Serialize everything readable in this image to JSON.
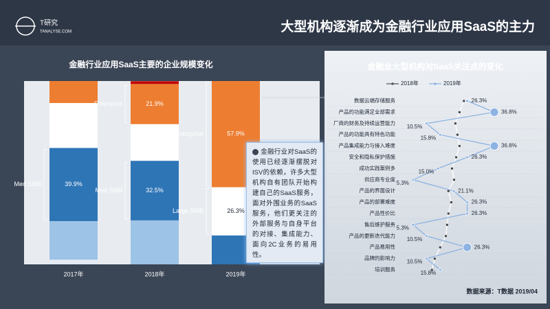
{
  "header": {
    "logo": "T研究",
    "site": "TANALYSE.COM",
    "title": "大型机构逐渐成为金融行业应用SaaS的主力"
  },
  "chart_data": [
    {
      "type": "bar",
      "stacked": true,
      "title": "金融行业应用SaaS主要的企业规模变化",
      "categories": [
        "2017年",
        "2018年",
        "2019年"
      ],
      "ylim": [
        0,
        100
      ],
      "series": [
        {
          "color": "#e4ebf5",
          "values": [
            2.6,
            0,
            0
          ],
          "value_labels": [
            null,
            null,
            null
          ]
        },
        {
          "color": "#9dc3e6",
          "values": [
            21,
            24,
            0
          ],
          "value_labels": [
            null,
            null,
            null
          ]
        },
        {
          "color": "#2e75b6",
          "values": [
            39.9,
            32.5,
            15.8
          ],
          "value_labels": [
            "39.9%",
            "32.5%",
            null
          ]
        },
        {
          "color": "#ffffff",
          "values": [
            24.5,
            20,
            26.3
          ],
          "value_labels": [
            null,
            null,
            "26.3%"
          ]
        },
        {
          "color": "#ed7d31",
          "values": [
            12,
            21.9,
            57.9
          ],
          "value_labels": [
            null,
            "21.9%",
            "57.9%"
          ]
        },
        {
          "color": "#c00000",
          "values": [
            0,
            1.5,
            0
          ],
          "value_labels": [
            null,
            null,
            null
          ]
        }
      ],
      "annotations": [
        "Med SMB",
        "Enterprise",
        "Med SMB",
        "Enterprise",
        "Large SMB"
      ]
    },
    {
      "type": "line",
      "orientation": "vertical",
      "title": "金融业大型机构对SaaS关注点的变化",
      "categories": [
        "数据云端存储服务",
        "产品的功能满足全部需求",
        "厂商的财务及持续运营能力",
        "产品的功能具有特色功能",
        "产品集成能力与接入难度",
        "安全和隐私保护措施",
        "成功实践案例多",
        "供应商专业度",
        "产品的界面设计",
        "产品的部署难度",
        "产品性价比",
        "售后维护服务",
        "产品的更新迭代能力",
        "产品易用性",
        "品牌的影响力",
        "培训服务"
      ],
      "xlim": [
        0,
        40
      ],
      "series": [
        {
          "name": "2018年",
          "color": "#ffffff",
          "values": [
            25,
            23.3,
            21.7,
            22.5,
            23.3,
            22,
            20.4,
            21.2,
            19,
            20.1,
            19,
            18.5,
            18,
            15.8,
            13.7,
            12.6
          ]
        },
        {
          "name": "2019年",
          "color": "#8db3e2",
          "values": [
            26.3,
            36.8,
            10.5,
            15.8,
            36.8,
            26.3,
            15.0,
            5.3,
            21.1,
            26.3,
            26.3,
            5.3,
            10.5,
            26.3,
            10.5,
            15.8
          ],
          "value_labels": [
            "26.3%",
            "36.8%",
            "10.5%",
            "15.8%",
            "36.8%",
            "26.3%",
            "15.0%",
            "5.3%",
            "21.1%",
            "26.3%",
            "26.3%",
            "5.3%",
            "10.5%",
            "26.3%",
            "10.5%",
            "15.8%"
          ]
        }
      ]
    }
  ],
  "callout": "金融行业对SaaS的使用已经逐渐摆脱对ISV的依赖，许多大型机构自有团队开始构建自己的SaaS服务，面对外围业务的SaaS服务，他们更关注的外部服务与自身平台的对接、集成能力、面向2C业务的易用性。",
  "source": "数据来源：T数据 2019/04"
}
